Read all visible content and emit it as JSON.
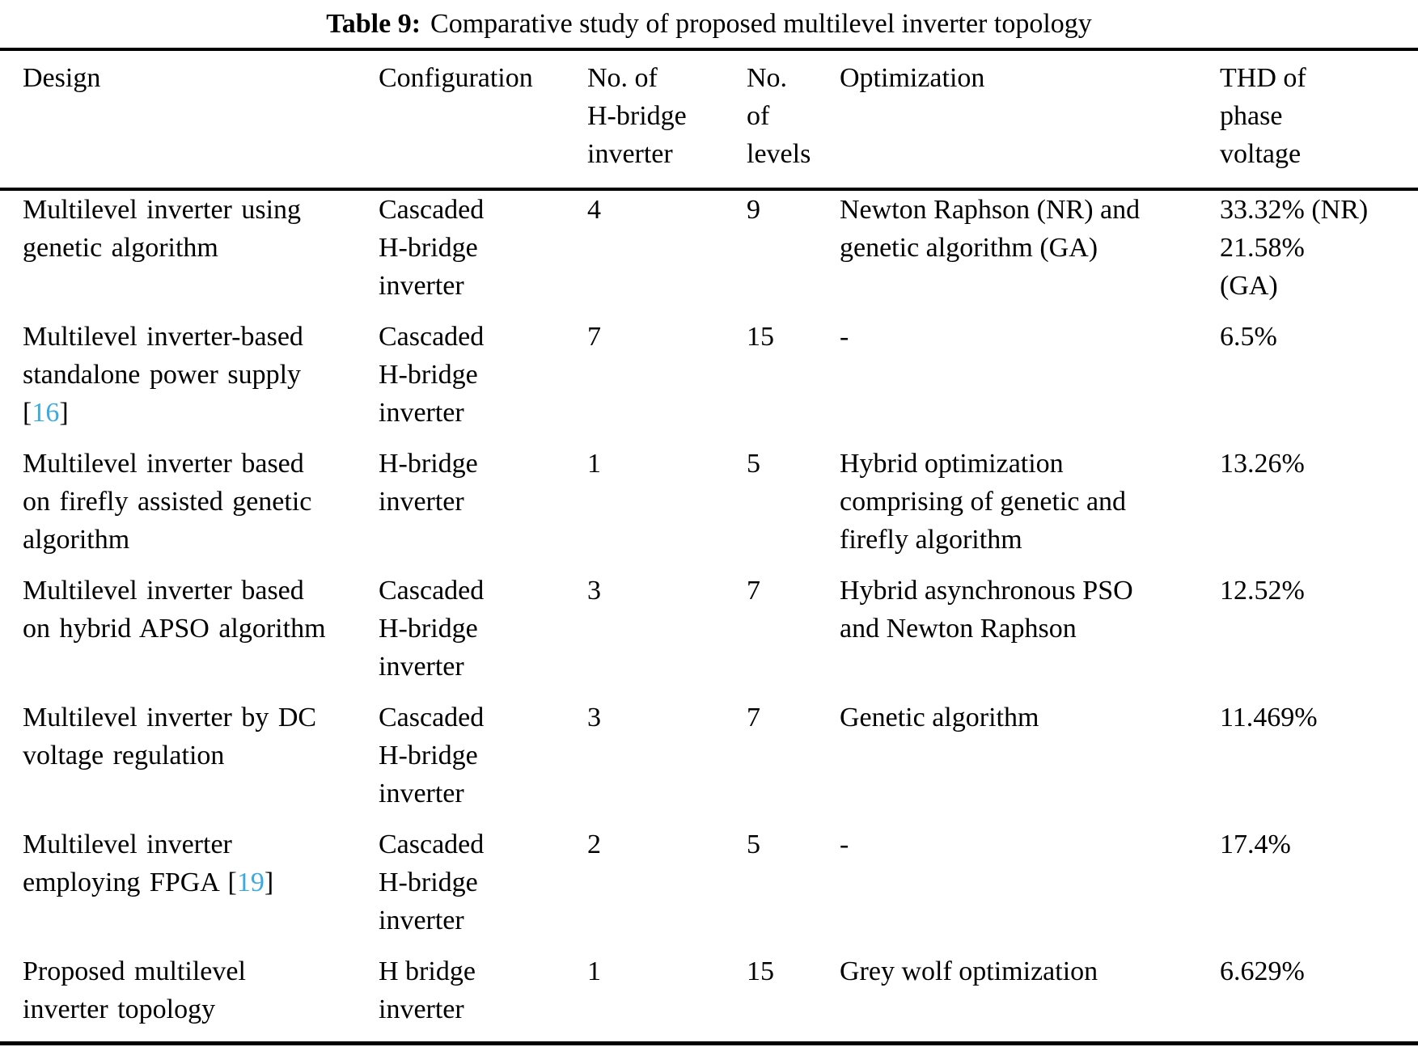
{
  "title": {
    "label": "Table 9:",
    "caption": "Comparative study of proposed multilevel inverter topology"
  },
  "columns": [
    {
      "label": "Design"
    },
    {
      "label": "Configuration"
    },
    {
      "label": "No. of\nH-bridge\ninverter"
    },
    {
      "label": "No.\nof\nlevels"
    },
    {
      "label": "Optimization"
    },
    {
      "label": "THD of\nphase\nvoltage"
    }
  ],
  "rows": [
    {
      "design_pre": "Multilevel inverter using\ngenetic algorithm",
      "config": "Cascaded\nH-bridge\ninverter",
      "hbridge": "4",
      "levels": "9",
      "optimization": "Newton Raphson (NR) and\ngenetic algorithm (GA)",
      "thd": "33.32% (NR)\n21.58%\n(GA)"
    },
    {
      "design_pre": "Multilevel inverter-based\nstandalone power supply\n[",
      "design_cite": "16",
      "design_post": "]",
      "config": "Cascaded\nH-bridge\ninverter",
      "hbridge": "7",
      "levels": "15",
      "optimization": "-",
      "thd": "6.5%"
    },
    {
      "design_pre": "Multilevel inverter based\non firefly assisted genetic\nalgorithm",
      "config": "H-bridge\ninverter",
      "hbridge": "1",
      "levels": "5",
      "optimization": "Hybrid optimization\ncomprising of genetic and\nfirefly algorithm",
      "thd": "13.26%"
    },
    {
      "design_pre": "Multilevel inverter based\non hybrid APSO algorithm",
      "config": "Cascaded\nH-bridge\ninverter",
      "hbridge": "3",
      "levels": "7",
      "optimization": "Hybrid asynchronous PSO\nand Newton Raphson",
      "thd": "12.52%"
    },
    {
      "design_pre": "Multilevel inverter by DC\nvoltage regulation",
      "config": "Cascaded\nH-bridge\ninverter",
      "hbridge": "3",
      "levels": "7",
      "optimization": "Genetic algorithm",
      "thd": "11.469%"
    },
    {
      "design_pre": "Multilevel inverter\nemploying FPGA [",
      "design_cite": "19",
      "design_post": "]",
      "config": "Cascaded\nH-bridge\ninverter",
      "hbridge": "2",
      "levels": "5",
      "optimization": "-",
      "thd": "17.4%"
    },
    {
      "design_pre": "Proposed multilevel\ninverter topology",
      "config": "H bridge\ninverter",
      "hbridge": "1",
      "levels": "15",
      "optimization": "Grey wolf optimization",
      "thd": "6.629%"
    }
  ],
  "colors": {
    "text": "#000000",
    "background": "#FFFFFF",
    "rule": "#000000",
    "citation": "#3BAAE0"
  }
}
